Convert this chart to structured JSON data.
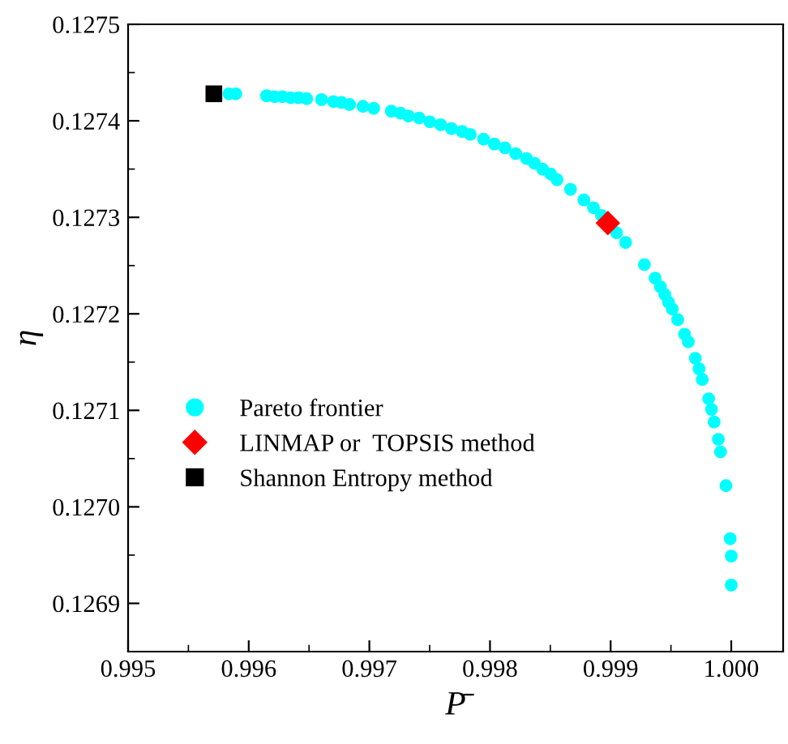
{
  "chart_data": {
    "type": "scatter",
    "xlabel": "P̄",
    "ylabel": "η",
    "xlim": [
      0.995,
      1.00043
    ],
    "ylim": [
      0.12685,
      0.1275
    ],
    "xticks": [
      0.995,
      0.996,
      0.997,
      0.998,
      0.999,
      {
        "value": 1.0,
        "label": "1.000"
      }
    ],
    "yticks": [
      0.1269,
      {
        "value": 0.127,
        "label": "0.1270"
      },
      0.1271,
      0.1272,
      0.1273,
      0.1274,
      0.1275
    ],
    "grid": false,
    "legend": "bottom left",
    "series": [
      {
        "name": "Pareto frontier",
        "color": "#00ffff",
        "marker": "circle",
        "x": [
          0.995836,
          0.995893,
          0.996147,
          0.996213,
          0.99628,
          0.996347,
          0.996413,
          0.99648,
          0.996604,
          0.996702,
          0.996769,
          0.996836,
          0.996947,
          0.997036,
          0.997182,
          0.997258,
          0.997324,
          0.997413,
          0.997502,
          0.997591,
          0.99768,
          0.997769,
          0.997836,
          0.997947,
          0.998036,
          0.998124,
          0.998213,
          0.998302,
          0.998369,
          0.998436,
          0.998502,
          0.998556,
          0.998667,
          0.998778,
          0.998858,
          0.998924,
          0.999049,
          0.999124,
          0.99928,
          0.999369,
          0.999413,
          0.999449,
          0.99948,
          0.999511,
          0.999556,
          0.999613,
          0.999644,
          0.999702,
          0.999733,
          0.99976,
          0.999813,
          0.999836,
          0.999858,
          0.999893,
          0.999911,
          0.999956,
          0.999991,
          1.0,
          1.0
        ],
        "values": [
          0.127428,
          0.127428,
          0.127426,
          0.127425,
          0.127425,
          0.127424,
          0.127424,
          0.127423,
          0.127422,
          0.12742,
          0.127419,
          0.127417,
          0.127415,
          0.127413,
          0.12741,
          0.127408,
          0.127405,
          0.127403,
          0.127399,
          0.127396,
          0.127392,
          0.127389,
          0.127386,
          0.127381,
          0.127376,
          0.127372,
          0.127366,
          0.127361,
          0.127356,
          0.12735,
          0.127345,
          0.127339,
          0.127329,
          0.127318,
          0.12731,
          0.127302,
          0.127284,
          0.127274,
          0.127251,
          0.127237,
          0.127228,
          0.12722,
          0.127212,
          0.127205,
          0.127194,
          0.127179,
          0.127171,
          0.127154,
          0.127143,
          0.127132,
          0.127112,
          0.127101,
          0.127088,
          0.12707,
          0.127057,
          0.127022,
          0.126967,
          0.126949,
          0.126919
        ]
      },
      {
        "name": "LINMAP or  TOPSIS method",
        "color": "#ff0000",
        "marker": "diamond",
        "x": [
          0.998977
        ],
        "values": [
          0.127294
        ]
      },
      {
        "name": "Shannon Entropy method",
        "color": "#000000",
        "marker": "square",
        "x": [
          0.995711
        ],
        "values": [
          0.127428
        ]
      }
    ]
  }
}
